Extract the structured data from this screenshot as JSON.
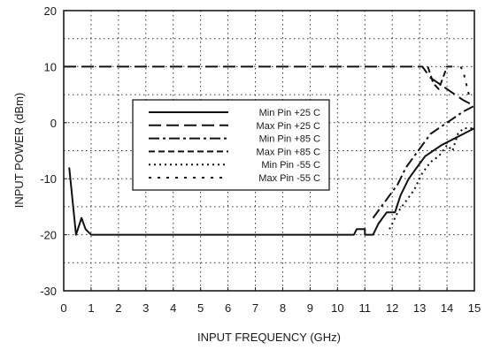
{
  "chart_data": {
    "type": "line",
    "title": "",
    "xlabel": "INPUT FREQUENCY (GHz)",
    "ylabel": "INPUT POWER (dBm)",
    "xlim": [
      0,
      15
    ],
    "ylim": [
      -30,
      20
    ],
    "x_ticks": [
      "0",
      "1",
      "2",
      "3",
      "4",
      "5",
      "6",
      "7",
      "8",
      "9",
      "10",
      "11",
      "12",
      "13",
      "14",
      "15"
    ],
    "y_ticks": [
      "20",
      "10",
      "0",
      "-10",
      "-20",
      "-30"
    ],
    "grid": "dotted",
    "legend_position": "center",
    "series": [
      {
        "name": "Min Pin +25 C",
        "dash": "solid",
        "points": [
          [
            0.2,
            -8
          ],
          [
            0.45,
            -20
          ],
          [
            0.65,
            -17
          ],
          [
            0.8,
            -19
          ],
          [
            1.0,
            -20
          ],
          [
            10.6,
            -20
          ],
          [
            10.7,
            -19
          ],
          [
            11.0,
            -19
          ],
          [
            11.0,
            -20
          ],
          [
            11.3,
            -20
          ],
          [
            11.5,
            -18
          ],
          [
            11.8,
            -16
          ],
          [
            12.1,
            -16
          ],
          [
            12.3,
            -13
          ],
          [
            12.6,
            -10
          ],
          [
            12.9,
            -8
          ],
          [
            13.2,
            -6
          ],
          [
            13.5,
            -5
          ],
          [
            13.8,
            -4
          ],
          [
            14.2,
            -3
          ],
          [
            14.6,
            -2
          ],
          [
            15.0,
            -1
          ]
        ]
      },
      {
        "name": "Max Pin +25 C",
        "dash": "long",
        "points": [
          [
            0.0,
            10
          ],
          [
            13.1,
            10
          ],
          [
            13.4,
            8
          ],
          [
            13.7,
            7
          ],
          [
            14.0,
            6
          ],
          [
            14.3,
            5
          ],
          [
            14.6,
            4
          ],
          [
            15.0,
            3
          ]
        ]
      },
      {
        "name": "Min Pin +85 C",
        "dash": "dashdot",
        "points": [
          [
            11.3,
            -17
          ],
          [
            11.6,
            -15
          ],
          [
            11.9,
            -13
          ],
          [
            12.2,
            -11
          ],
          [
            12.5,
            -8
          ],
          [
            12.8,
            -6
          ],
          [
            13.1,
            -4
          ],
          [
            13.4,
            -2
          ],
          [
            13.7,
            -1
          ],
          [
            14.0,
            0
          ],
          [
            14.3,
            1
          ],
          [
            14.6,
            2
          ],
          [
            15.0,
            3
          ]
        ]
      },
      {
        "name": "Max Pin +85 C",
        "dash": "medium",
        "points": [
          [
            13.3,
            10
          ],
          [
            13.5,
            7
          ],
          [
            13.7,
            6
          ],
          [
            14.0,
            10
          ],
          [
            14.2,
            10
          ]
        ]
      },
      {
        "name": "Min Pin -55 C",
        "dash": "dotted",
        "points": [
          [
            11.9,
            -19
          ],
          [
            12.2,
            -16
          ],
          [
            12.5,
            -14
          ],
          [
            12.8,
            -12
          ],
          [
            13.1,
            -9
          ],
          [
            13.4,
            -7
          ],
          [
            13.7,
            -6
          ],
          [
            14.0,
            -4
          ],
          [
            14.2,
            -5
          ],
          [
            14.4,
            -2
          ],
          [
            14.6,
            -1
          ],
          [
            15.0,
            -1
          ]
        ]
      },
      {
        "name": "Max Pin -55 C",
        "dash": "sparse",
        "points": [
          [
            14.5,
            10
          ],
          [
            14.6,
            9
          ],
          [
            14.7,
            7
          ],
          [
            14.8,
            5
          ]
        ]
      }
    ]
  }
}
